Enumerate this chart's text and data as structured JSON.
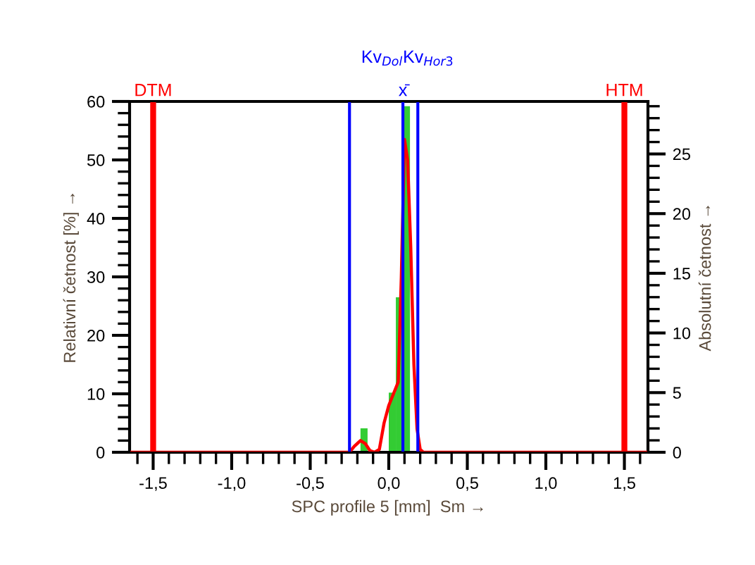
{
  "chart_data": {
    "type": "histogram",
    "xlabel": "SPC profile 5 [mm]  Sm →",
    "ylabel": "Relativní četnost [%] →",
    "y2label": "Absolutní četnost →",
    "bins": [
      -0.18,
      -0.135,
      -0.09,
      -0.045,
      0.0,
      0.045,
      0.09,
      0.135
    ],
    "values": [
      4.1,
      0,
      0,
      0,
      10.2,
      26.5,
      59.2
    ],
    "color": "#33cc33",
    "series": [
      {
        "type": "line",
        "color": "#ff0000",
        "x": [
          -1.65,
          -0.25,
          -0.22,
          -0.18,
          -0.15,
          -0.12,
          -0.09,
          -0.06,
          -0.03,
          0.0,
          0.03,
          0.06,
          0.08,
          0.1,
          0.12,
          0.14,
          0.16,
          0.18,
          0.2,
          0.22,
          1.65
        ],
        "values": [
          0,
          0,
          1.0,
          2.0,
          1.5,
          0.3,
          0,
          0.5,
          5,
          8,
          10,
          12,
          30,
          53.5,
          50,
          35,
          15,
          4,
          0.5,
          0,
          0
        ]
      }
    ],
    "ref_lines": [
      {
        "axis": "x",
        "value": -1.5,
        "label": "DTM",
        "color": "#ff0000"
      },
      {
        "axis": "x",
        "value": 1.5,
        "label": "HTM",
        "color": "#ff0000"
      },
      {
        "axis": "x",
        "value": 0.09,
        "label": "x̄",
        "color": "#0000ff"
      },
      {
        "axis": "x",
        "value": -0.25,
        "label": "Kv$_{Dol}$",
        "color": "#0000ff"
      },
      {
        "axis": "x",
        "value": 0.185,
        "label": "Kv$_{Hor3}$",
        "color": "#0000ff"
      }
    ],
    "xlim": [
      -1.65,
      1.65
    ],
    "xticks": [
      {
        "value": -1.6,
        "label": null
      },
      {
        "value": -1.5,
        "label": "-1,5"
      },
      {
        "value": -1.4,
        "label": null
      },
      {
        "value": -1.3,
        "label": null
      },
      {
        "value": -1.2,
        "label": null
      },
      {
        "value": -1.1,
        "label": null
      },
      {
        "value": -1.0,
        "label": "-1,0"
      },
      {
        "value": -0.9,
        "label": null
      },
      {
        "value": -0.8,
        "label": null
      },
      {
        "value": -0.7,
        "label": null
      },
      {
        "value": -0.6,
        "label": null
      },
      {
        "value": -0.5,
        "label": "-0,5"
      },
      {
        "value": -0.4,
        "label": null
      },
      {
        "value": -0.3,
        "label": null
      },
      {
        "value": -0.2,
        "label": null
      },
      {
        "value": -0.1,
        "label": null
      },
      {
        "value": 0.0,
        "label": "0,0"
      },
      {
        "value": 0.1,
        "label": null
      },
      {
        "value": 0.2,
        "label": null
      },
      {
        "value": 0.3,
        "label": null
      },
      {
        "value": 0.4,
        "label": null
      },
      {
        "value": 0.5,
        "label": "0,5"
      },
      {
        "value": 0.6,
        "label": null
      },
      {
        "value": 0.7,
        "label": null
      },
      {
        "value": 0.8,
        "label": null
      },
      {
        "value": 0.9,
        "label": null
      },
      {
        "value": 1.0,
        "label": "1,0"
      },
      {
        "value": 1.1,
        "label": null
      },
      {
        "value": 1.2,
        "label": null
      },
      {
        "value": 1.3,
        "label": null
      },
      {
        "value": 1.4,
        "label": null
      },
      {
        "value": 1.5,
        "label": "1,5"
      },
      {
        "value": 1.6,
        "label": null
      }
    ],
    "ylim": [
      0,
      60
    ],
    "yticks": [
      0,
      {
        "value": 2,
        "label": null
      },
      {
        "value": 4,
        "label": null
      },
      {
        "value": 6,
        "label": null
      },
      {
        "value": 8,
        "label": null
      },
      10,
      {
        "value": 12,
        "label": null
      },
      {
        "value": 14,
        "label": null
      },
      {
        "value": 16,
        "label": null
      },
      {
        "value": 18,
        "label": null
      },
      20,
      {
        "value": 22,
        "label": null
      },
      {
        "value": 24,
        "label": null
      },
      {
        "value": 26,
        "label": null
      },
      {
        "value": 28,
        "label": null
      },
      30,
      {
        "value": 32,
        "label": null
      },
      {
        "value": 34,
        "label": null
      },
      {
        "value": 36,
        "label": null
      },
      {
        "value": 38,
        "label": null
      },
      40,
      {
        "value": 42,
        "label": null
      },
      {
        "value": 44,
        "label": null
      },
      {
        "value": 46,
        "label": null
      },
      {
        "value": 48,
        "label": null
      },
      50,
      {
        "value": 52,
        "label": null
      },
      {
        "value": 54,
        "label": null
      },
      {
        "value": 56,
        "label": null
      },
      {
        "value": 58,
        "label": null
      },
      60
    ],
    "y2lim": [
      0,
      29.4
    ],
    "y2ticks": [
      0,
      {
        "value": 1,
        "label": null
      },
      {
        "value": 2,
        "label": null
      },
      {
        "value": 3,
        "label": null
      },
      {
        "value": 4,
        "label": null
      },
      5,
      {
        "value": 6,
        "label": null
      },
      {
        "value": 7,
        "label": null
      },
      {
        "value": 8,
        "label": null
      },
      {
        "value": 9,
        "label": null
      },
      10,
      {
        "value": 11,
        "label": null
      },
      {
        "value": 12,
        "label": null
      },
      {
        "value": 13,
        "label": null
      },
      {
        "value": 14,
        "label": null
      },
      15,
      {
        "value": 16,
        "label": null
      },
      {
        "value": 17,
        "label": null
      },
      {
        "value": 18,
        "label": null
      },
      {
        "value": 19,
        "label": null
      },
      20,
      {
        "value": 21,
        "label": null
      },
      {
        "value": 22,
        "label": null
      },
      {
        "value": 23,
        "label": null
      },
      {
        "value": 24,
        "label": null
      },
      25,
      {
        "value": 26,
        "label": null
      },
      {
        "value": 27,
        "label": null
      },
      {
        "value": 28,
        "label": null
      },
      {
        "value": 29,
        "label": null
      }
    ],
    "grid": false,
    "legend": false
  }
}
